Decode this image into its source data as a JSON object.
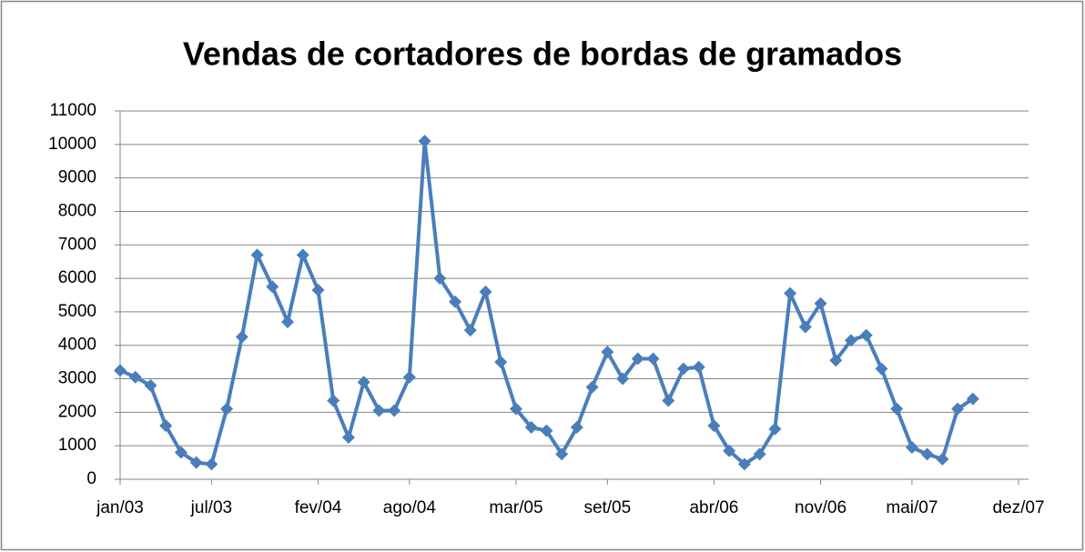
{
  "chart_data": {
    "type": "line",
    "title": "Vendas de cortadores de bordas de gramados",
    "x": [
      "2003-01",
      "2003-02",
      "2003-03",
      "2003-04",
      "2003-05",
      "2003-06",
      "2003-07",
      "2003-08",
      "2003-09",
      "2003-10",
      "2003-11",
      "2003-12",
      "2004-01",
      "2004-02",
      "2004-03",
      "2004-04",
      "2004-05",
      "2004-06",
      "2004-07",
      "2004-08",
      "2004-09",
      "2004-10",
      "2004-11",
      "2004-12",
      "2005-01",
      "2005-02",
      "2005-03",
      "2005-04",
      "2005-05",
      "2005-06",
      "2005-07",
      "2005-08",
      "2005-09",
      "2005-10",
      "2005-11",
      "2005-12",
      "2006-01",
      "2006-02",
      "2006-03",
      "2006-04",
      "2006-05",
      "2006-06",
      "2006-07",
      "2006-08",
      "2006-09",
      "2006-10",
      "2006-11",
      "2006-12",
      "2007-01",
      "2007-02",
      "2007-03",
      "2007-04",
      "2007-05",
      "2007-06",
      "2007-07",
      "2007-08",
      "2007-09"
    ],
    "series": [
      {
        "name": "Vendas",
        "color": "#4a7ebb",
        "values": [
          3250,
          3050,
          2800,
          1600,
          800,
          500,
          450,
          2100,
          4250,
          6700,
          5750,
          4700,
          6700,
          5650,
          2350,
          1250,
          2900,
          2050,
          2050,
          3050,
          10100,
          6000,
          5300,
          4450,
          5600,
          3500,
          2100,
          1550,
          1450,
          750,
          1550,
          2750,
          3800,
          3000,
          3600,
          3600,
          2350,
          3300,
          3350,
          1600,
          850,
          450,
          750,
          1500,
          5550,
          4550,
          5250,
          3550,
          4150,
          4300,
          3300,
          2100,
          950,
          750,
          600,
          2100,
          2400
        ]
      }
    ],
    "xlim": [
      "2003-01",
      "2007-12"
    ],
    "xticks": [
      {
        "value": "2003-01",
        "label": "jan/03"
      },
      {
        "value": "2003-07",
        "label": "jul/03"
      },
      {
        "value": "2004-02",
        "label": "fev/04"
      },
      {
        "value": "2004-08",
        "label": "ago/04"
      },
      {
        "value": "2005-03",
        "label": "mar/05"
      },
      {
        "value": "2005-09",
        "label": "set/05"
      },
      {
        "value": "2006-04",
        "label": "abr/06"
      },
      {
        "value": "2006-11",
        "label": "nov/06"
      },
      {
        "value": "2007-05",
        "label": "mai/07"
      },
      {
        "value": "2007-12",
        "label": "dez/07"
      }
    ],
    "ylim": [
      0,
      11000
    ],
    "yticks": [
      0,
      1000,
      2000,
      3000,
      4000,
      5000,
      6000,
      7000,
      8000,
      9000,
      10000,
      11000
    ],
    "grid": true
  }
}
